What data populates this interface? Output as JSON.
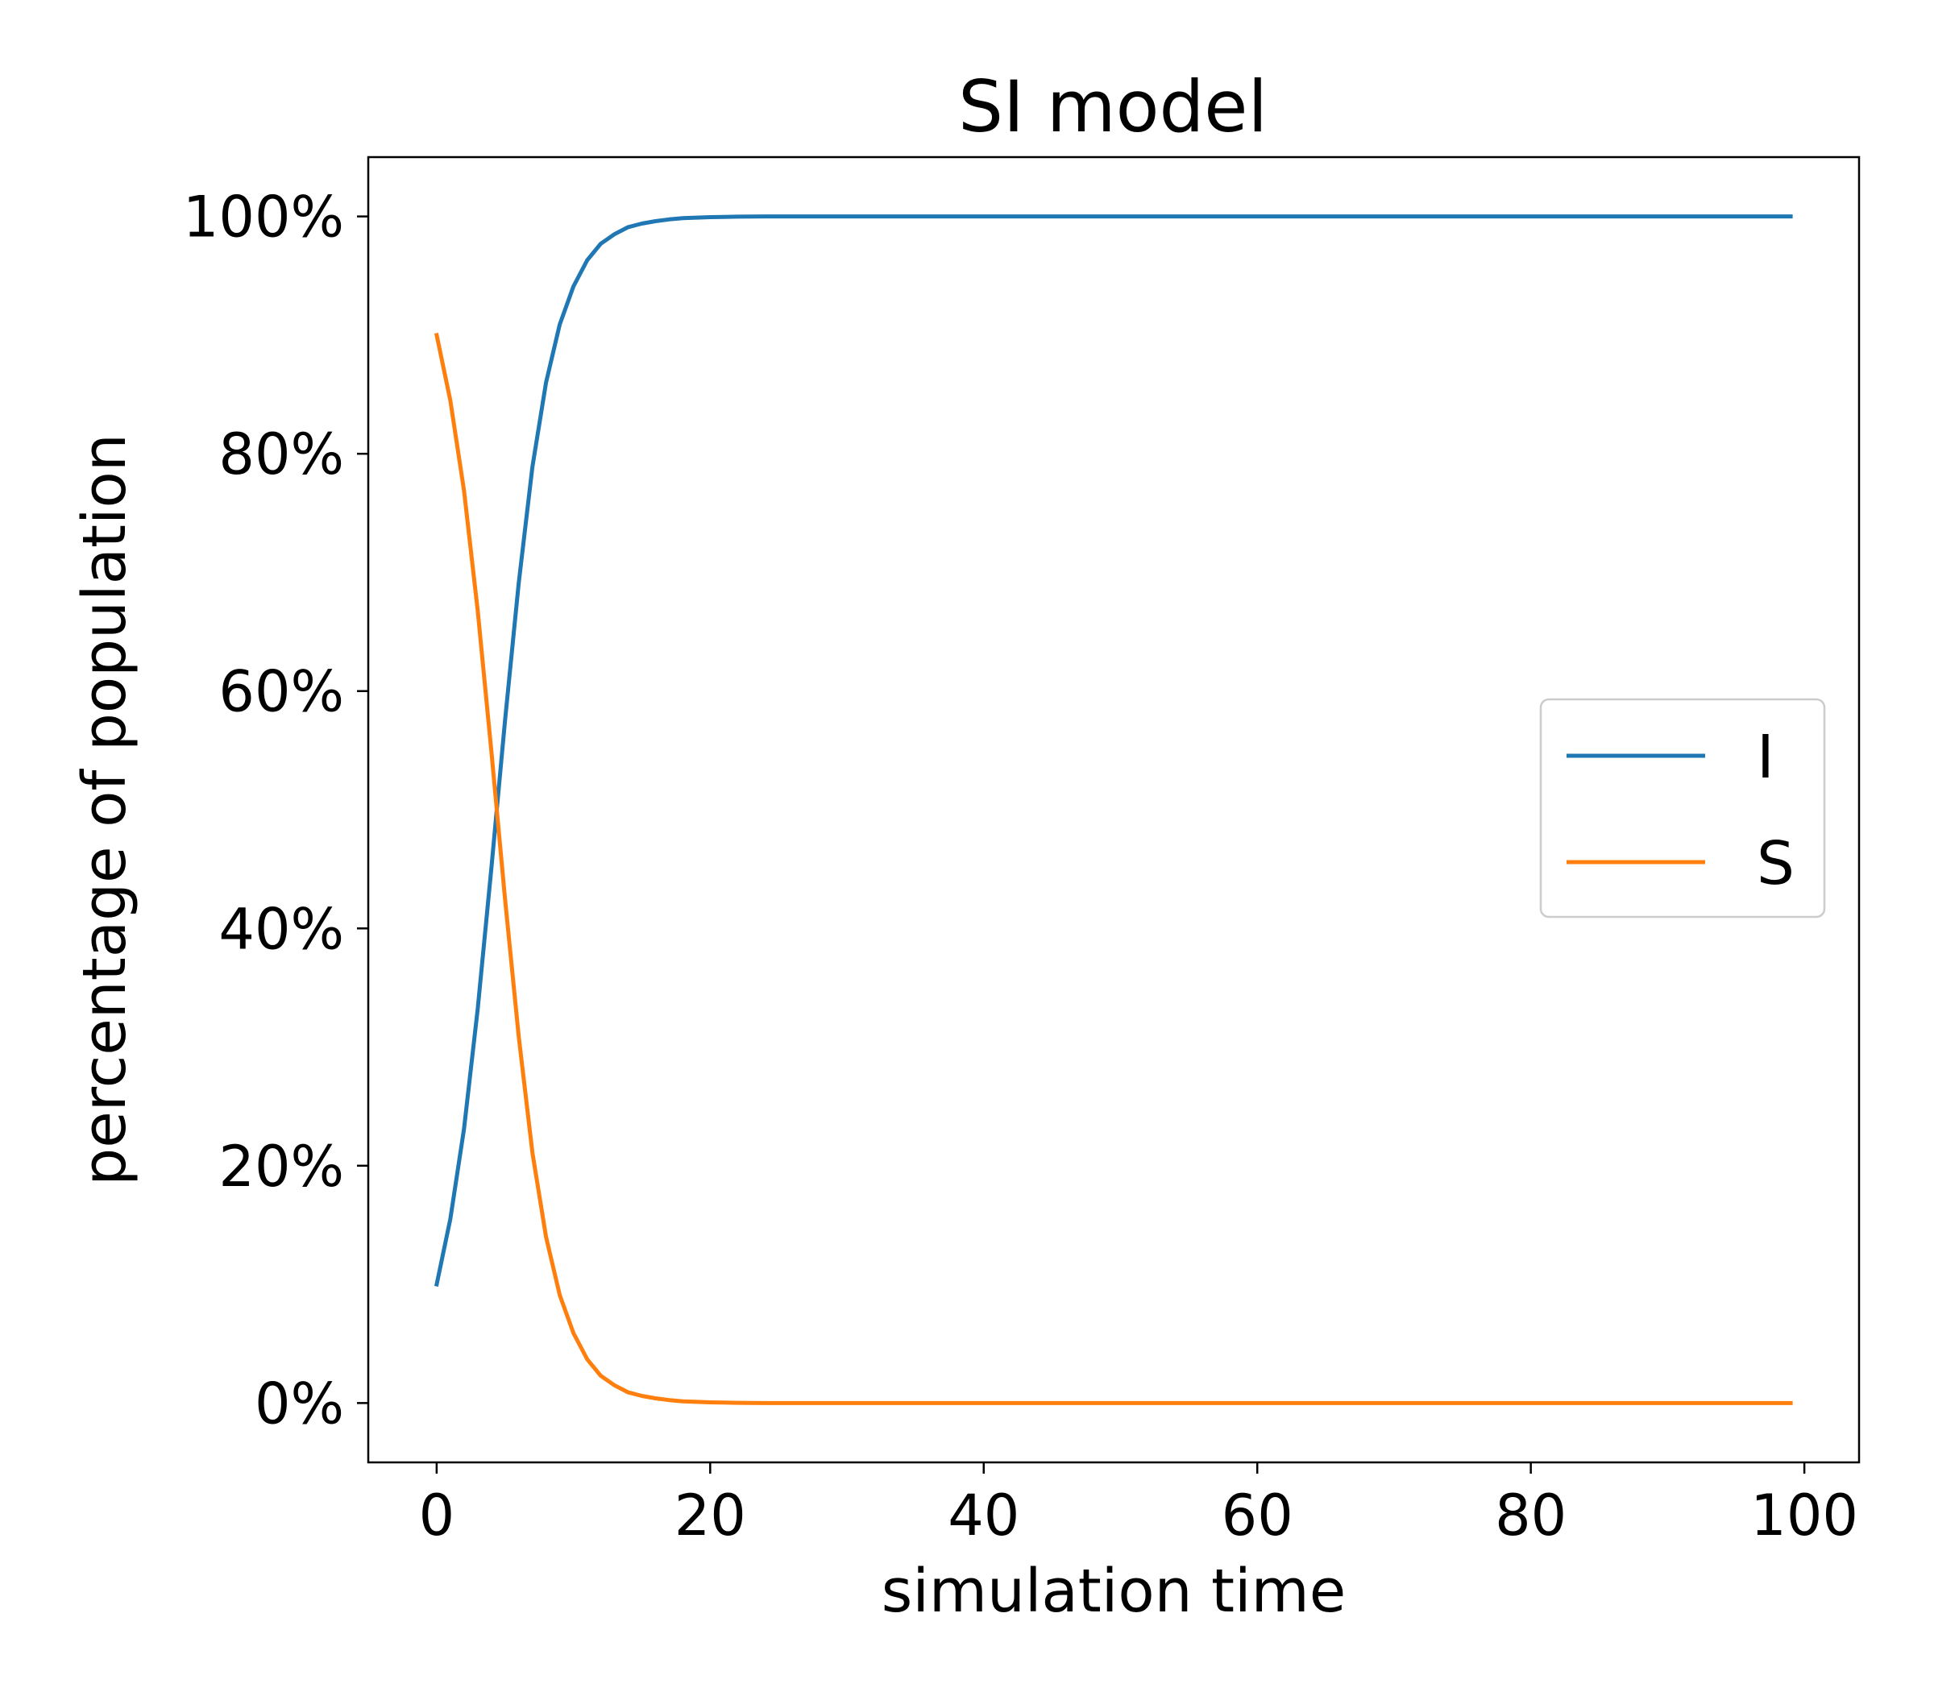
{
  "chart_data": {
    "type": "line",
    "title": "SI model",
    "xlabel": "simulation time",
    "ylabel": "percentage of population",
    "xlim": [
      -5,
      104
    ],
    "ylim": [
      -5,
      105
    ],
    "xticks": [
      0,
      20,
      40,
      60,
      80,
      100
    ],
    "xtick_labels": [
      "0",
      "20",
      "40",
      "60",
      "80",
      "100"
    ],
    "yticks": [
      0,
      20,
      40,
      60,
      80,
      100
    ],
    "ytick_labels": [
      "0%",
      "20%",
      "40%",
      "60%",
      "80%",
      "100%"
    ],
    "grid": false,
    "legend_position": "center-right",
    "x": [
      0,
      1,
      2,
      3,
      4,
      5,
      6,
      7,
      8,
      9,
      10,
      11,
      12,
      13,
      14,
      15,
      16,
      17,
      18,
      19,
      20,
      21,
      22,
      23,
      24,
      25,
      30,
      40,
      50,
      60,
      70,
      80,
      90,
      99
    ],
    "series": [
      {
        "name": "I",
        "color": "#1f77b4",
        "values": [
          10,
          15.5,
          23.1,
          33.2,
          45.1,
          57.5,
          69.1,
          78.9,
          86.0,
          90.9,
          94.1,
          96.3,
          97.7,
          98.5,
          99.1,
          99.4,
          99.6,
          99.75,
          99.85,
          99.9,
          99.94,
          99.96,
          99.98,
          99.99,
          100,
          100,
          100,
          100,
          100,
          100,
          100,
          100,
          100,
          100
        ]
      },
      {
        "name": "S",
        "color": "#ff7f0e",
        "values": [
          90,
          84.5,
          76.9,
          66.8,
          54.9,
          42.5,
          30.9,
          21.1,
          14.0,
          9.1,
          5.9,
          3.7,
          2.3,
          1.5,
          0.9,
          0.6,
          0.4,
          0.25,
          0.15,
          0.1,
          0.06,
          0.04,
          0.02,
          0.01,
          0,
          0,
          0,
          0,
          0,
          0,
          0,
          0,
          0,
          0
        ]
      }
    ]
  }
}
